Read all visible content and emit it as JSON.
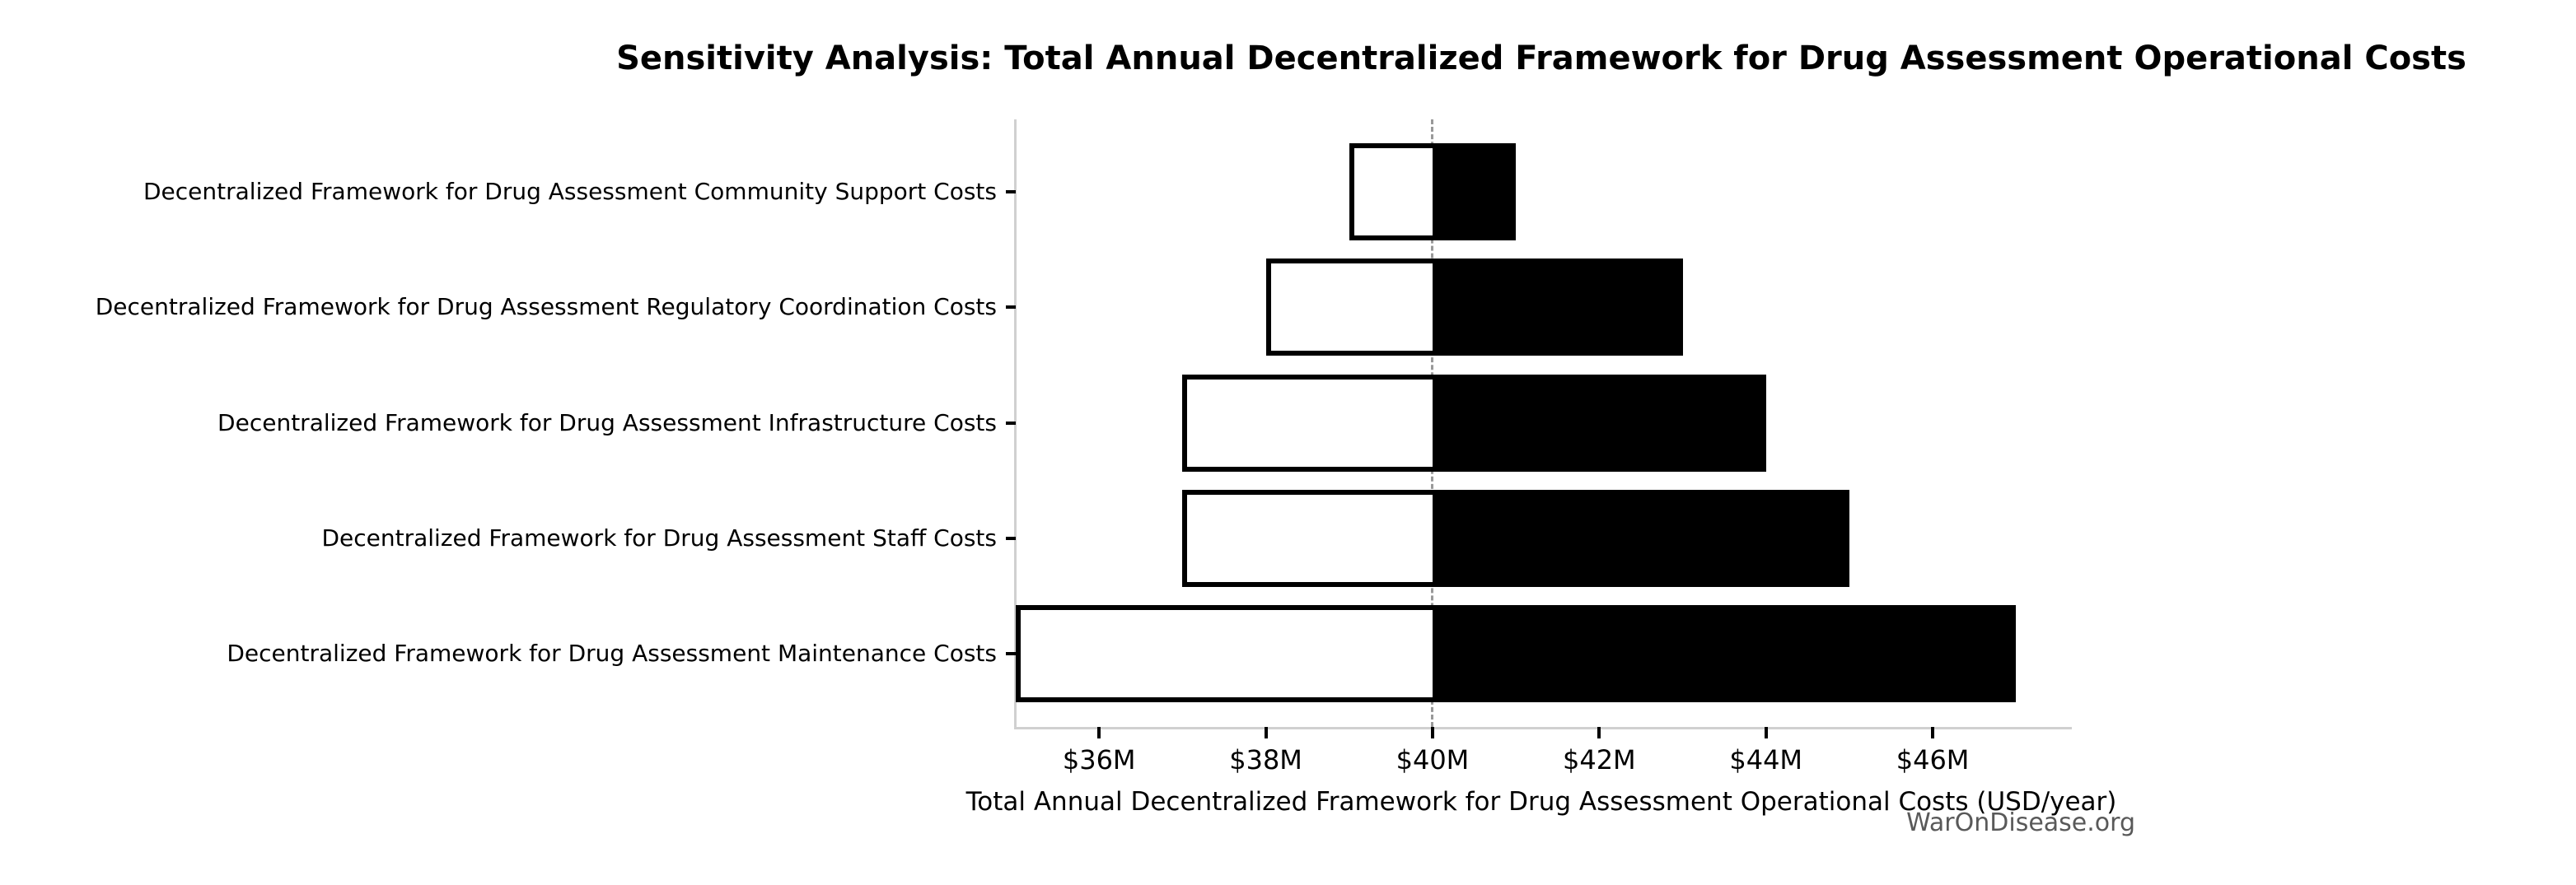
{
  "watermark": "WarOnDisease.org",
  "chart_data": {
    "type": "bar",
    "variant": "tornado-sensitivity",
    "orientation": "horizontal",
    "title": "Sensitivity Analysis: Total Annual Decentralized Framework for Drug Assessment Operational Costs",
    "xlabel": "Total Annual Decentralized Framework for Drug Assessment Operational Costs (USD/year)",
    "ylabel": "",
    "unit": "USD millions per year",
    "baseline_value": 40,
    "xlim": [
      35,
      47.62
    ],
    "x_ticks": [
      {
        "value": 36,
        "label": "$36M"
      },
      {
        "value": 38,
        "label": "$38M"
      },
      {
        "value": 40,
        "label": "$40M"
      },
      {
        "value": 42,
        "label": "$42M"
      },
      {
        "value": 44,
        "label": "$44M"
      },
      {
        "value": 46,
        "label": "$46M"
      }
    ],
    "categories": [
      "Decentralized Framework for Drug Assessment Community Support Costs",
      "Decentralized Framework for Drug Assessment Regulatory Coordination Costs",
      "Decentralized Framework for Drug Assessment Infrastructure Costs",
      "Decentralized Framework for Drug Assessment Staff Costs",
      "Decentralized Framework for Drug Assessment Maintenance Costs"
    ],
    "series": [
      {
        "name": "low",
        "fill": "#ffffff",
        "values": [
          39,
          38,
          37,
          37,
          35
        ]
      },
      {
        "name": "high",
        "fill": "#000000",
        "values": [
          41,
          43,
          44,
          45,
          47
        ]
      }
    ],
    "styles": {
      "bar_edge_color": "#000000",
      "baseline_line_color": "#999999",
      "baseline_line_style": "dashed",
      "spine_color": "#d0d0d0",
      "tick_color": "#000000",
      "text_color": "#000000",
      "watermark_color": "#595959",
      "background": "#ffffff",
      "grid": "off",
      "legend": "none"
    }
  }
}
